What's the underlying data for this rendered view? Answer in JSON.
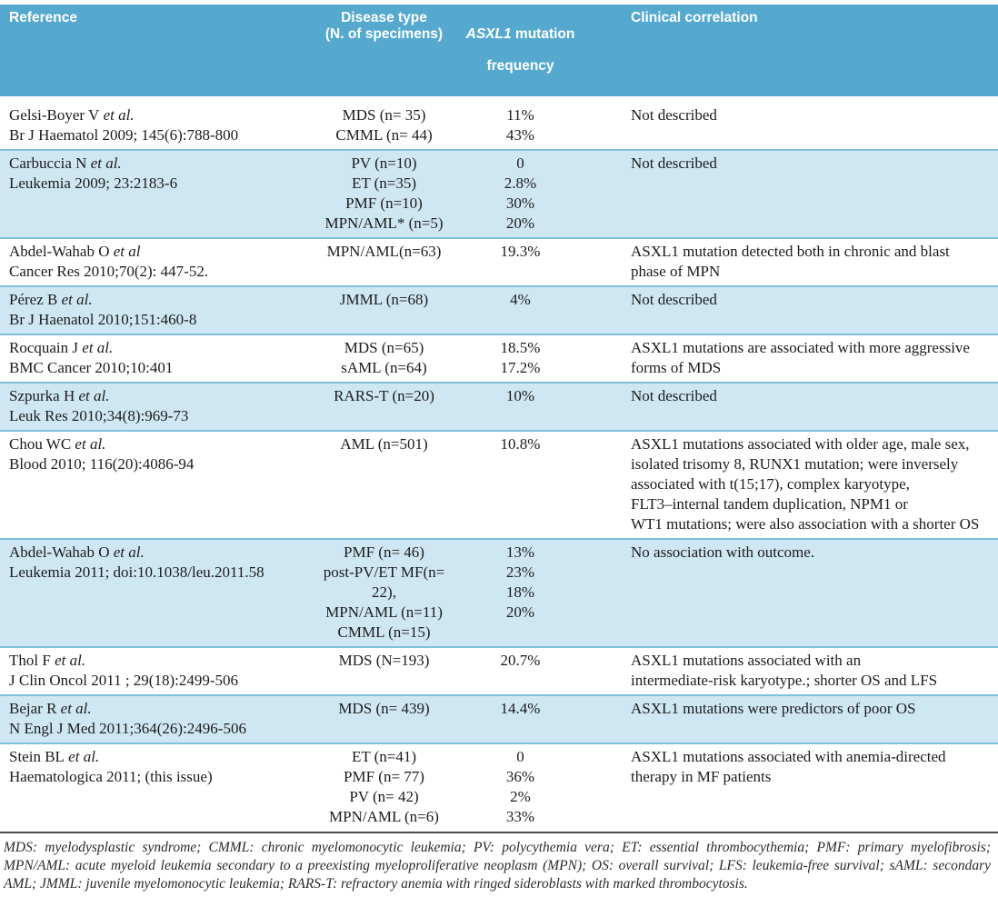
{
  "colors": {
    "header_bg": "#56a9ce",
    "shaded_row_bg": "#cfe7f3",
    "row_separator": "#7fc0db",
    "footnote_rule": "#4a4a4a",
    "header_text": "#ffffff",
    "body_text": "#1c1c1c"
  },
  "table": {
    "header": {
      "reference": "Reference",
      "disease_type": [
        "Disease type",
        "(N. of specimens)"
      ],
      "mutation_gene": "ASXL1",
      "mutation_rest": "mutation",
      "mutation_line2": "frequency",
      "clinical": "Clinical correlation"
    },
    "rows": [
      {
        "authors": "Gelsi-Boyer V",
        "etal": "et al.",
        "citation": "Br J Haematol 2009; 145(6):788-800",
        "diseases": [
          "MDS (n= 35)",
          "CMML (n= 44)"
        ],
        "frequencies": [
          "11%",
          "43%"
        ],
        "clinical": "Not described",
        "shaded": false
      },
      {
        "authors": "Carbuccia N",
        "etal": "et al.",
        "citation": "Leukemia 2009; 23:2183-6",
        "diseases": [
          "PV (n=10)",
          "ET (n=35)",
          "PMF (n=10)",
          "MPN/AML* (n=5)"
        ],
        "frequencies": [
          "0",
          "2.8%",
          "30%",
          "20%"
        ],
        "clinical": "Not described",
        "shaded": true
      },
      {
        "authors": "Abdel-Wahab O",
        "etal": "et al",
        "citation": "Cancer Res  2010;70(2): 447-52.",
        "diseases": [
          "MPN/AML(n=63)"
        ],
        "frequencies": [
          "19.3%"
        ],
        "clinical": "ASXL1 mutation detected both in chronic and blast\nphase of MPN",
        "shaded": false
      },
      {
        "authors": "Pérez B",
        "etal": "et al.",
        "citation": "Br J Haenatol 2010;151:460-8",
        "diseases": [
          "JMML (n=68)"
        ],
        "frequencies": [
          "4%"
        ],
        "clinical": "Not described",
        "shaded": true
      },
      {
        "authors": "Rocquain J",
        "etal": "et al.",
        "citation": "BMC Cancer 2010;10:401",
        "diseases": [
          "MDS (n=65)",
          "sAML (n=64)"
        ],
        "frequencies": [
          "18.5%",
          "17.2%"
        ],
        "clinical": "ASXL1 mutations are associated with more aggressive\nforms of MDS",
        "shaded": false
      },
      {
        "authors": "Szpurka H",
        "etal": "et al.",
        "citation": "Leuk Res 2010;34(8):969-73",
        "diseases": [
          "RARS-T (n=20)"
        ],
        "frequencies": [
          "10%"
        ],
        "clinical": "Not described",
        "shaded": true
      },
      {
        "authors": "Chou WC",
        "etal": "et al.",
        "citation": "Blood 2010; 116(20):4086-94",
        "diseases": [
          "AML (n=501)"
        ],
        "frequencies": [
          "10.8%"
        ],
        "clinical": "ASXL1 mutations associated with older age, male sex,\nisolated trisomy 8, RUNX1 mutation; were inversely\nassociated with t(15;17), complex karyotype,\nFLT3–internal tandem duplication, NPM1 or\nWT1 mutations; were also association with a shorter OS",
        "shaded": false
      },
      {
        "authors": "Abdel-Wahab O",
        "etal": "et al.",
        "citation": "Leukemia 2011; doi:10.1038/leu.2011.58",
        "diseases": [
          "PMF (n= 46)",
          "post-PV/ET MF(n= 22),",
          "MPN/AML (n=11)",
          "CMML (n=15)"
        ],
        "frequencies": [
          "13%",
          "23%",
          "18%",
          "20%"
        ],
        "clinical": "No association with outcome.",
        "shaded": true
      },
      {
        "authors": "Thol F",
        "etal": "et al.",
        "citation": "J Clin Oncol 2011 ; 29(18):2499-506",
        "diseases": [
          "MDS (N=193)"
        ],
        "frequencies": [
          "20.7%"
        ],
        "clinical": "ASXL1 mutations associated with an\nintermediate-risk karyotype.; shorter OS and LFS",
        "shaded": false
      },
      {
        "authors": "Bejar R",
        "etal": "et al.",
        "citation": "N Engl J Med 2011;364(26):2496-506",
        "diseases": [
          "MDS (n= 439)"
        ],
        "frequencies": [
          "14.4%"
        ],
        "clinical": "ASXL1 mutations were predictors of poor OS",
        "shaded": true
      },
      {
        "authors": "Stein BL",
        "etal": "et al.",
        "citation": "Haematologica 2011; (this issue)",
        "diseases": [
          "ET (n=41)",
          "PMF (n= 77)",
          "PV (n= 42)",
          "MPN/AML (n=6)"
        ],
        "frequencies": [
          "0",
          "36%",
          "2%",
          "33%"
        ],
        "clinical": "ASXL1 mutations associated with anemia-directed\ntherapy in MF patients",
        "shaded": false
      }
    ],
    "footnote": "MDS: myelodysplastic syndrome; CMML: chronic myelomonocytic leukemia; PV: polycythemia vera; ET: essential thrombocythemia; PMF: primary myelofibrosis; MPN/AML: acute myeloid leukemia secondary to a preexisting myeloproliferative neoplasm (MPN); OS: overall survival; LFS: leukemia-free survival; sAML: secondary AML; JMML: juvenile myelomonocytic leukemia; RARS-T: refractory anemia with ringed sideroblasts with marked thrombocytosis."
  }
}
